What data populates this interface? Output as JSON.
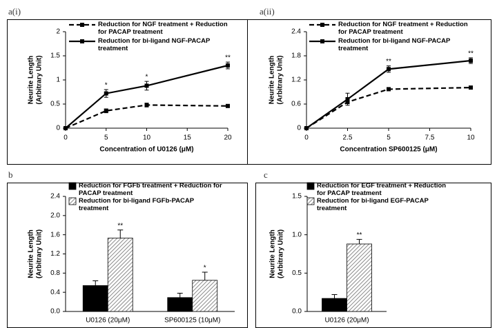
{
  "chart_data": [
    {
      "type": "line",
      "panel_label": "a(i)",
      "xlabel": "Concentration of U0126 (μM)",
      "ylabel": [
        "Neurite Length",
        "(Arbitrary Unit)"
      ],
      "x": [
        0,
        5,
        10,
        20
      ],
      "xlim": [
        0,
        20
      ],
      "xticks": [
        0,
        5,
        10,
        15,
        20
      ],
      "ylim": [
        0,
        2
      ],
      "yticks": [
        0,
        0.5,
        1,
        1.5,
        2
      ],
      "series": [
        {
          "name": "Reduction for NGF treatment + Reduction for PACAP treatment",
          "color": "#000000",
          "dash": true,
          "values": [
            0,
            0.36,
            0.48,
            0.46
          ],
          "errors": [
            0,
            0.04,
            0.04,
            0.03
          ]
        },
        {
          "name": "Reduction for bi-ligand NGF-PACAP treatment",
          "color": "#000000",
          "dash": false,
          "values": [
            0,
            0.72,
            0.88,
            1.3
          ],
          "errors": [
            0,
            0.08,
            0.09,
            0.07
          ],
          "significance": [
            null,
            "*",
            "*",
            "**"
          ]
        }
      ]
    },
    {
      "type": "line",
      "panel_label": "a(ii)",
      "xlabel": "Concentration SP600125 (μM)",
      "ylabel": [
        "Neurite Length",
        "(Arbitrary Unit)"
      ],
      "x": [
        0,
        2.5,
        5,
        10
      ],
      "xlim": [
        0,
        10
      ],
      "xticks": [
        0,
        2.5,
        5,
        7.5,
        10
      ],
      "ylim": [
        0,
        2.4
      ],
      "yticks": [
        0,
        0.6,
        1.2,
        1.8,
        2.4
      ],
      "series": [
        {
          "name": "Reduction for NGF treatment + Reduction for PACAP treatment",
          "color": "#000000",
          "dash": true,
          "values": [
            0,
            0.65,
            0.97,
            1.01
          ],
          "errors": [
            0,
            0.04,
            0.03,
            0.03
          ]
        },
        {
          "name": "Reduction for bi-ligand NGF-PACAP treatment",
          "color": "#000000",
          "dash": false,
          "values": [
            0,
            0.72,
            1.47,
            1.68
          ],
          "errors": [
            0,
            0.15,
            0.08,
            0.07
          ],
          "significance": [
            null,
            null,
            "**",
            "**"
          ]
        }
      ]
    },
    {
      "type": "bar",
      "panel_label": "b",
      "ylabel": [
        "Neurite Length",
        "(Arbitrary Unit)"
      ],
      "categories": [
        "U0126 (20μM)",
        "SP600125 (10μM)"
      ],
      "ylim": [
        0,
        2.4
      ],
      "yticks": [
        {
          "value": 0,
          "label": "0.0"
        },
        {
          "value": 0.4,
          "label": "0.4"
        },
        {
          "value": 0.8,
          "label": "0.8"
        },
        {
          "value": 1.2,
          "label": "1.2"
        },
        {
          "value": 1.6,
          "label": "1.6"
        },
        {
          "value": 2.0,
          "label": "2.0"
        },
        {
          "value": 2.4,
          "label": "2.4"
        }
      ],
      "series": [
        {
          "name": "Reduction for FGFb treatment + Reduction for PACAP treatment",
          "color": "#000000",
          "hatch": false,
          "values": [
            0.54,
            0.29
          ],
          "errors": [
            0.1,
            0.09
          ]
        },
        {
          "name": "Reduction for bi-ligand FGFb-PACAP treatment",
          "color": "#8a8a8a",
          "hatch": true,
          "values": [
            1.53,
            0.65
          ],
          "errors": [
            0.17,
            0.17
          ],
          "significance": [
            "**",
            "*"
          ]
        }
      ]
    },
    {
      "type": "bar",
      "panel_label": "c",
      "ylabel": [
        "Neurite Length",
        "(Arbitrary Unit)"
      ],
      "categories": [
        "U0126 (20μM)"
      ],
      "ylim": [
        0,
        1.5
      ],
      "yticks": [
        {
          "value": 0,
          "label": "0.0"
        },
        {
          "value": 0.5,
          "label": "0.5"
        },
        {
          "value": 1.0,
          "label": "1.0"
        },
        {
          "value": 1.5,
          "label": "1.5"
        }
      ],
      "series": [
        {
          "name": "Reduction for EGF treatment + Reduction for PACAP treatment",
          "color": "#000000",
          "hatch": false,
          "values": [
            0.17
          ],
          "errors": [
            0.05
          ]
        },
        {
          "name": "Reduction for bi-ligand EGF-PACAP treatment",
          "color": "#8a8a8a",
          "hatch": true,
          "values": [
            0.88
          ],
          "errors": [
            0.06
          ],
          "significance": [
            "**"
          ]
        }
      ]
    }
  ]
}
